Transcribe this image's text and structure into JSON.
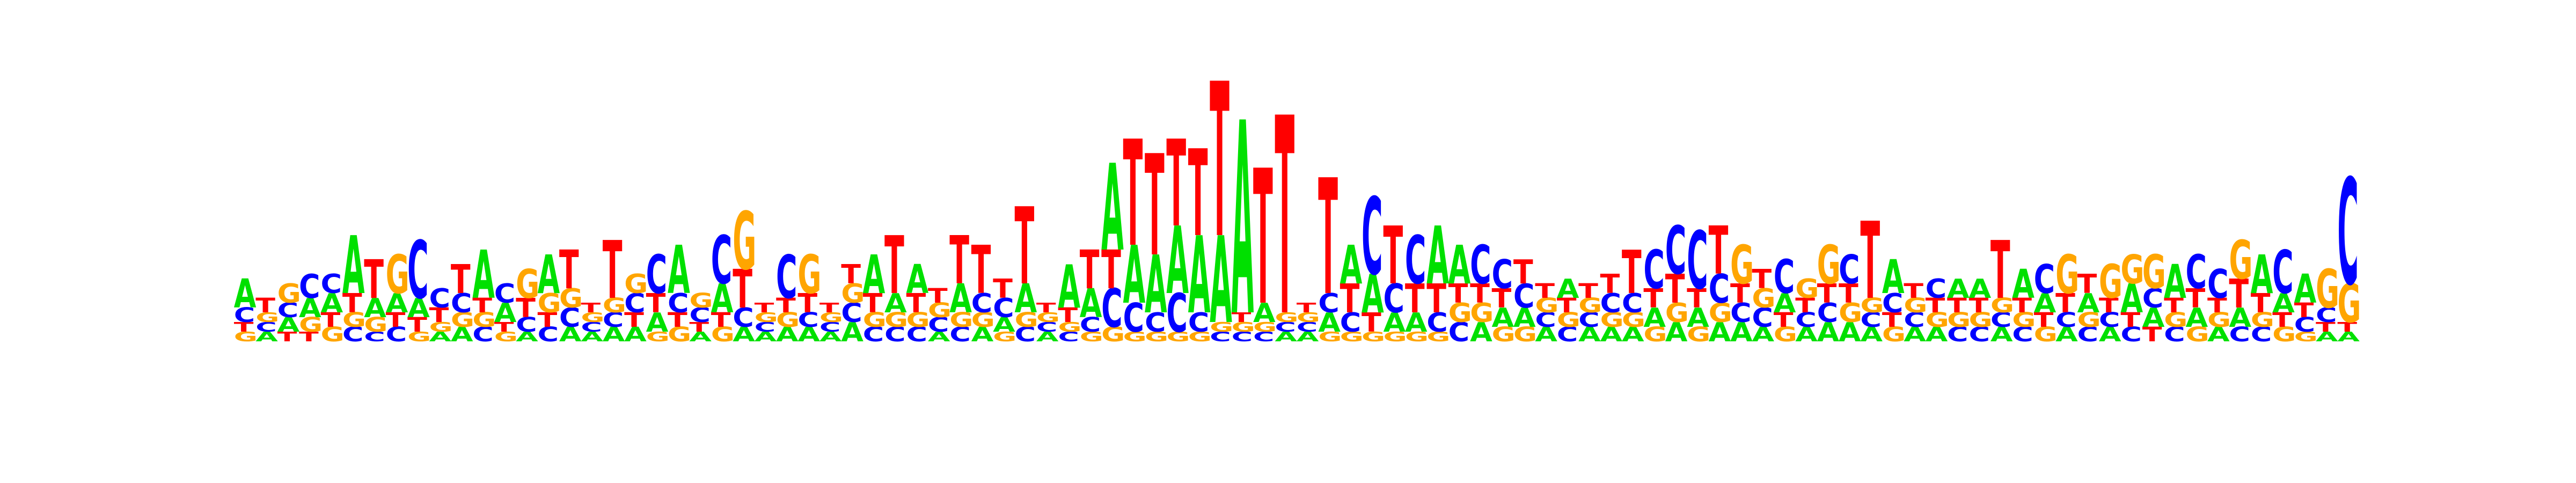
{
  "chart_data": {
    "type": "sequence-logo",
    "alphabet": [
      "A",
      "C",
      "G",
      "T"
    ],
    "colors": {
      "A": "#00e000",
      "C": "#0000ff",
      "G": "#ffa500",
      "T": "#ff0000"
    },
    "ylim": [
      0,
      2
    ],
    "positions": [
      {
        "A": 0.3,
        "C": 0.15,
        "G": 0.1,
        "T": 0.1
      },
      {
        "A": 0.1,
        "C": 0.1,
        "G": 0.1,
        "T": 0.15
      },
      {
        "A": 0.15,
        "C": 0.15,
        "G": 0.2,
        "T": 0.1
      },
      {
        "A": 0.2,
        "C": 0.25,
        "G": 0.15,
        "T": 0.1
      },
      {
        "A": 0.2,
        "C": 0.2,
        "G": 0.15,
        "T": 0.15
      },
      {
        "A": 0.6,
        "C": 0.15,
        "G": 0.15,
        "T": 0.2
      },
      {
        "A": 0.2,
        "C": 0.1,
        "G": 0.15,
        "T": 0.4
      },
      {
        "A": 0.2,
        "C": 0.15,
        "G": 0.4,
        "T": 0.15
      },
      {
        "A": 0.2,
        "C": 0.6,
        "G": 0.1,
        "T": 0.15
      },
      {
        "A": 0.1,
        "C": 0.2,
        "G": 0.1,
        "T": 0.15
      },
      {
        "A": 0.15,
        "C": 0.2,
        "G": 0.15,
        "T": 0.3
      },
      {
        "A": 0.5,
        "C": 0.15,
        "G": 0.15,
        "T": 0.15
      },
      {
        "A": 0.2,
        "C": 0.2,
        "G": 0.1,
        "T": 0.1
      },
      {
        "A": 0.1,
        "C": 0.15,
        "G": 0.3,
        "T": 0.2
      },
      {
        "A": 0.4,
        "C": 0.15,
        "G": 0.2,
        "T": 0.15
      },
      {
        "A": 0.15,
        "C": 0.2,
        "G": 0.2,
        "T": 0.4
      },
      {
        "A": 0.1,
        "C": 0.1,
        "G": 0.1,
        "T": 0.1
      },
      {
        "A": 0.15,
        "C": 0.15,
        "G": 0.15,
        "T": 0.6
      },
      {
        "A": 0.15,
        "C": 0.2,
        "G": 0.2,
        "T": 0.15
      },
      {
        "A": 0.2,
        "C": 0.4,
        "G": 0.1,
        "T": 0.2
      },
      {
        "A": 0.5,
        "C": 0.2,
        "G": 0.15,
        "T": 0.15
      },
      {
        "A": 0.1,
        "C": 0.15,
        "G": 0.15,
        "T": 0.1
      },
      {
        "A": 0.3,
        "C": 0.5,
        "G": 0.15,
        "T": 0.15
      },
      {
        "A": 0.15,
        "C": 0.2,
        "G": 0.6,
        "T": 0.4
      },
      {
        "A": 0.1,
        "C": 0.1,
        "G": 0.1,
        "T": 0.1
      },
      {
        "A": 0.15,
        "C": 0.45,
        "G": 0.15,
        "T": 0.15
      },
      {
        "A": 0.15,
        "C": 0.15,
        "G": 0.4,
        "T": 0.2
      },
      {
        "A": 0.1,
        "C": 0.1,
        "G": 0.1,
        "T": 0.1
      },
      {
        "A": 0.2,
        "C": 0.2,
        "G": 0.2,
        "T": 0.2
      },
      {
        "A": 0.4,
        "C": 0.15,
        "G": 0.15,
        "T": 0.2
      },
      {
        "A": 0.2,
        "C": 0.15,
        "G": 0.15,
        "T": 0.6
      },
      {
        "A": 0.3,
        "C": 0.15,
        "G": 0.15,
        "T": 0.2
      },
      {
        "A": 0.1,
        "C": 0.15,
        "G": 0.15,
        "T": 0.15
      },
      {
        "A": 0.3,
        "C": 0.15,
        "G": 0.15,
        "T": 0.5
      },
      {
        "A": 0.15,
        "C": 0.2,
        "G": 0.15,
        "T": 0.5
      },
      {
        "A": 0.15,
        "C": 0.2,
        "G": 0.1,
        "T": 0.2
      },
      {
        "A": 0.3,
        "C": 0.15,
        "G": 0.15,
        "T": 0.8
      },
      {
        "A": 0.1,
        "C": 0.1,
        "G": 0.1,
        "T": 0.1
      },
      {
        "A": 0.45,
        "C": 0.1,
        "G": 0.1,
        "T": 0.15
      },
      {
        "A": 0.3,
        "C": 0.15,
        "G": 0.1,
        "T": 0.4
      },
      {
        "A": 0.9,
        "C": 0.4,
        "G": 0.15,
        "T": 0.4
      },
      {
        "A": 0.6,
        "C": 0.3,
        "G": 0.1,
        "T": 1.1
      },
      {
        "A": 0.6,
        "C": 0.2,
        "G": 0.1,
        "T": 1.05
      },
      {
        "A": 0.7,
        "C": 0.4,
        "G": 0.1,
        "T": 0.9
      },
      {
        "A": 0.8,
        "C": 0.2,
        "G": 0.1,
        "T": 0.9
      },
      {
        "A": 0.9,
        "C": 0.1,
        "G": 0.1,
        "T": 1.6
      },
      {
        "A": 2.0,
        "C": 0.1,
        "G": 0.1,
        "T": 0.1
      },
      {
        "A": 0.2,
        "C": 0.1,
        "G": 0.1,
        "T": 1.4
      },
      {
        "A": 0.1,
        "C": 0.1,
        "G": 0.1,
        "T": 2.05
      },
      {
        "A": 0.1,
        "C": 0.1,
        "G": 0.1,
        "T": 0.1
      },
      {
        "A": 0.2,
        "C": 0.2,
        "G": 0.1,
        "T": 1.2
      },
      {
        "A": 0.4,
        "C": 0.2,
        "G": 0.1,
        "T": 0.3
      },
      {
        "A": 0.4,
        "C": 0.8,
        "G": 0.1,
        "T": 0.2
      },
      {
        "A": 0.2,
        "C": 0.3,
        "G": 0.1,
        "T": 0.6
      },
      {
        "A": 0.2,
        "C": 0.5,
        "G": 0.1,
        "T": 0.3
      },
      {
        "A": 0.6,
        "C": 0.2,
        "G": 0.1,
        "T": 0.3
      },
      {
        "A": 0.4,
        "C": 0.2,
        "G": 0.2,
        "T": 0.2
      },
      {
        "A": 0.2,
        "C": 0.4,
        "G": 0.2,
        "T": 0.2
      },
      {
        "A": 0.2,
        "C": 0.3,
        "G": 0.15,
        "T": 0.2
      },
      {
        "A": 0.2,
        "C": 0.25,
        "G": 0.15,
        "T": 0.25
      },
      {
        "A": 0.15,
        "C": 0.15,
        "G": 0.15,
        "T": 0.15
      },
      {
        "A": 0.2,
        "C": 0.15,
        "G": 0.15,
        "T": 0.15
      },
      {
        "A": 0.15,
        "C": 0.15,
        "G": 0.15,
        "T": 0.15
      },
      {
        "A": 0.15,
        "C": 0.2,
        "G": 0.15,
        "T": 0.2
      },
      {
        "A": 0.15,
        "C": 0.2,
        "G": 0.15,
        "T": 0.45
      },
      {
        "A": 0.2,
        "C": 0.4,
        "G": 0.15,
        "T": 0.2
      },
      {
        "A": 0.2,
        "C": 0.5,
        "G": 0.2,
        "T": 0.3
      },
      {
        "A": 0.2,
        "C": 0.6,
        "G": 0.15,
        "T": 0.2
      },
      {
        "A": 0.2,
        "C": 0.3,
        "G": 0.2,
        "T": 0.5
      },
      {
        "A": 0.2,
        "C": 0.2,
        "G": 0.4,
        "T": 0.2
      },
      {
        "A": 0.15,
        "C": 0.2,
        "G": 0.2,
        "T": 0.2
      },
      {
        "A": 0.2,
        "C": 0.35,
        "G": 0.15,
        "T": 0.15
      },
      {
        "A": 0.15,
        "C": 0.15,
        "G": 0.2,
        "T": 0.15
      },
      {
        "A": 0.2,
        "C": 0.2,
        "G": 0.4,
        "T": 0.2
      },
      {
        "A": 0.2,
        "C": 0.3,
        "G": 0.2,
        "T": 0.2
      },
      {
        "A": 0.15,
        "C": 0.15,
        "G": 0.15,
        "T": 0.8
      },
      {
        "A": 0.35,
        "C": 0.2,
        "G": 0.15,
        "T": 0.15
      },
      {
        "A": 0.15,
        "C": 0.15,
        "G": 0.15,
        "T": 0.15
      },
      {
        "A": 0.15,
        "C": 0.2,
        "G": 0.15,
        "T": 0.15
      },
      {
        "A": 0.2,
        "C": 0.15,
        "G": 0.15,
        "T": 0.15
      },
      {
        "A": 0.2,
        "C": 0.15,
        "G": 0.15,
        "T": 0.15
      },
      {
        "A": 0.15,
        "C": 0.15,
        "G": 0.15,
        "T": 0.6
      },
      {
        "A": 0.3,
        "C": 0.15,
        "G": 0.15,
        "T": 0.15
      },
      {
        "A": 0.2,
        "C": 0.3,
        "G": 0.15,
        "T": 0.15
      },
      {
        "A": 0.15,
        "C": 0.15,
        "G": 0.4,
        "T": 0.2
      },
      {
        "A": 0.2,
        "C": 0.15,
        "G": 0.15,
        "T": 0.2
      },
      {
        "A": 0.15,
        "C": 0.15,
        "G": 0.35,
        "T": 0.15
      },
      {
        "A": 0.3,
        "C": 0.15,
        "G": 0.3,
        "T": 0.15
      },
      {
        "A": 0.2,
        "C": 0.2,
        "G": 0.35,
        "T": 0.15
      },
      {
        "A": 0.35,
        "C": 0.15,
        "G": 0.15,
        "T": 0.15
      },
      {
        "A": 0.2,
        "C": 0.35,
        "G": 0.15,
        "T": 0.2
      },
      {
        "A": 0.15,
        "C": 0.3,
        "G": 0.15,
        "T": 0.15
      },
      {
        "A": 0.2,
        "C": 0.15,
        "G": 0.4,
        "T": 0.3
      },
      {
        "A": 0.4,
        "C": 0.15,
        "G": 0.15,
        "T": 0.2
      },
      {
        "A": 0.2,
        "C": 0.45,
        "G": 0.15,
        "T": 0.15
      },
      {
        "A": 0.3,
        "C": 0.15,
        "G": 0.1,
        "T": 0.15
      },
      {
        "A": 0.1,
        "C": 0.15,
        "G": 0.4,
        "T": 0.1
      },
      {
        "A": 0.1,
        "C": 1.1,
        "G": 0.4,
        "T": 0.1
      }
    ]
  }
}
